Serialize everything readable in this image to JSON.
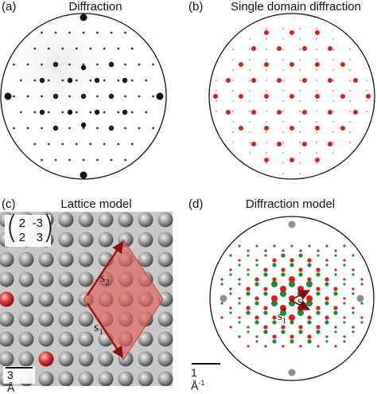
{
  "panels": {
    "a": {
      "label": "(a)",
      "title": "Diffraction"
    },
    "b": {
      "label": "(b)",
      "title": "Single domain diffraction"
    },
    "c": {
      "label": "(c)",
      "title": "Lattice model",
      "scalebar": "3 Å",
      "matrix": {
        "r1c1": "2",
        "r1c2": "-3",
        "r2c1": "2",
        "r2c2": "3"
      },
      "vector_labels": {
        "s1": "s",
        "s1_sub": "1",
        "s2": "s",
        "s2_sub": "2"
      }
    },
    "d": {
      "label": "(d)",
      "title": "Diffraction model",
      "scalebar": "1 Å",
      "scalebar_sup": "-1",
      "vector_labels": {
        "s1": "s",
        "s1_sub": "1",
        "s1_sup": "*",
        "s2": "s",
        "s2_sub": "2",
        "s2_sup": "*"
      }
    }
  },
  "colors": {
    "red": "#d81e1e",
    "green": "#1d8a2e",
    "gray_atom": "#8f8f8f",
    "diamond": "#e0605a"
  }
}
